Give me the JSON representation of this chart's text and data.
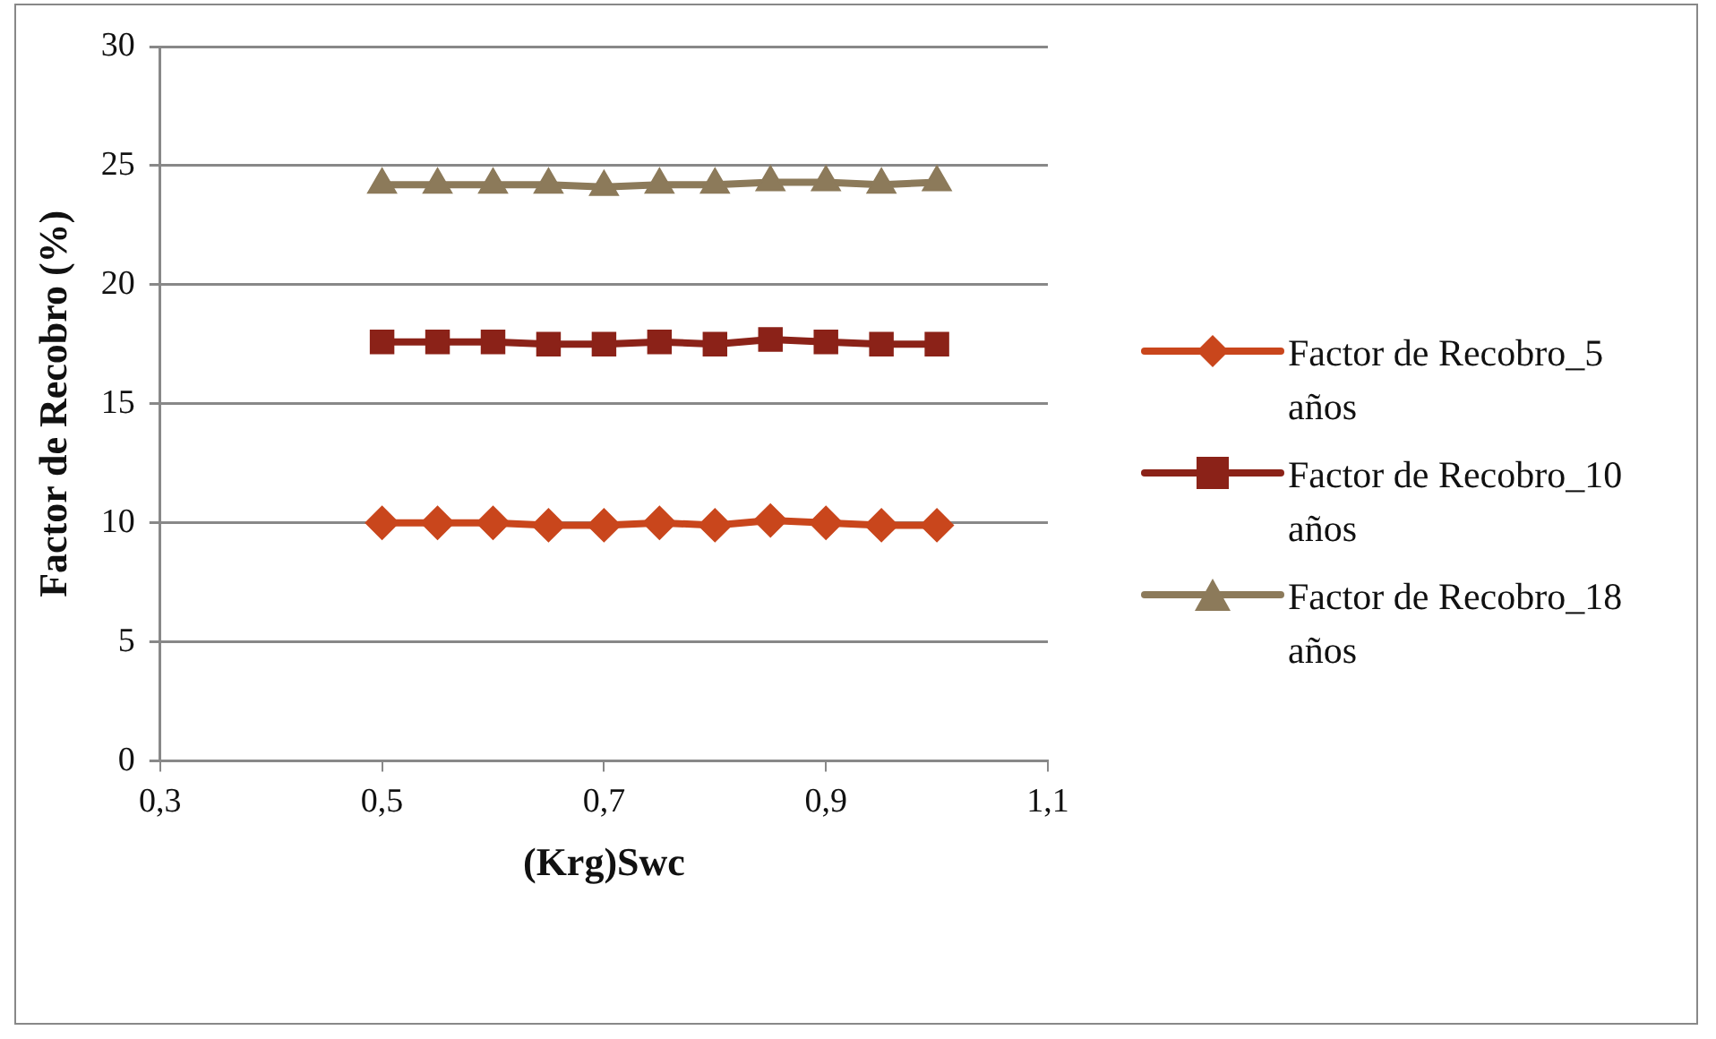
{
  "chart_data": {
    "type": "line",
    "xlabel": "(Krg)Swc",
    "ylabel": "Factor de Recobro (%)",
    "x": [
      0.5,
      0.55,
      0.6,
      0.65,
      0.7,
      0.75,
      0.8,
      0.85,
      0.9,
      0.95,
      1.0
    ],
    "xlim": [
      0.3,
      1.1
    ],
    "xticks": [
      {
        "value": 0.3,
        "label": "0,3"
      },
      {
        "value": 0.5,
        "label": "0,5"
      },
      {
        "value": 0.7,
        "label": "0,7"
      },
      {
        "value": 0.9,
        "label": "0,9"
      },
      {
        "value": 1.1,
        "label": "1,1"
      }
    ],
    "ylim": [
      0,
      30
    ],
    "yticks": [
      0,
      5,
      10,
      15,
      20,
      25,
      30
    ],
    "grid": "y",
    "legend": "right",
    "series": [
      {
        "name": "Factor de Recobro_5 años",
        "color": "#c9461c",
        "marker": "diamond",
        "values": [
          10,
          10,
          10,
          9.9,
          9.9,
          10,
          9.9,
          10.1,
          10,
          9.9,
          9.9
        ]
      },
      {
        "name": "Factor de Recobro_10 años",
        "color": "#8b2218",
        "marker": "square",
        "values": [
          17.6,
          17.6,
          17.6,
          17.5,
          17.5,
          17.6,
          17.5,
          17.7,
          17.6,
          17.5,
          17.5
        ]
      },
      {
        "name": "Factor de Recobro_18 años",
        "color": "#8c7a5a",
        "marker": "triangle",
        "values": [
          24.2,
          24.2,
          24.2,
          24.2,
          24.1,
          24.2,
          24.2,
          24.3,
          24.3,
          24.2,
          24.3
        ]
      }
    ]
  }
}
